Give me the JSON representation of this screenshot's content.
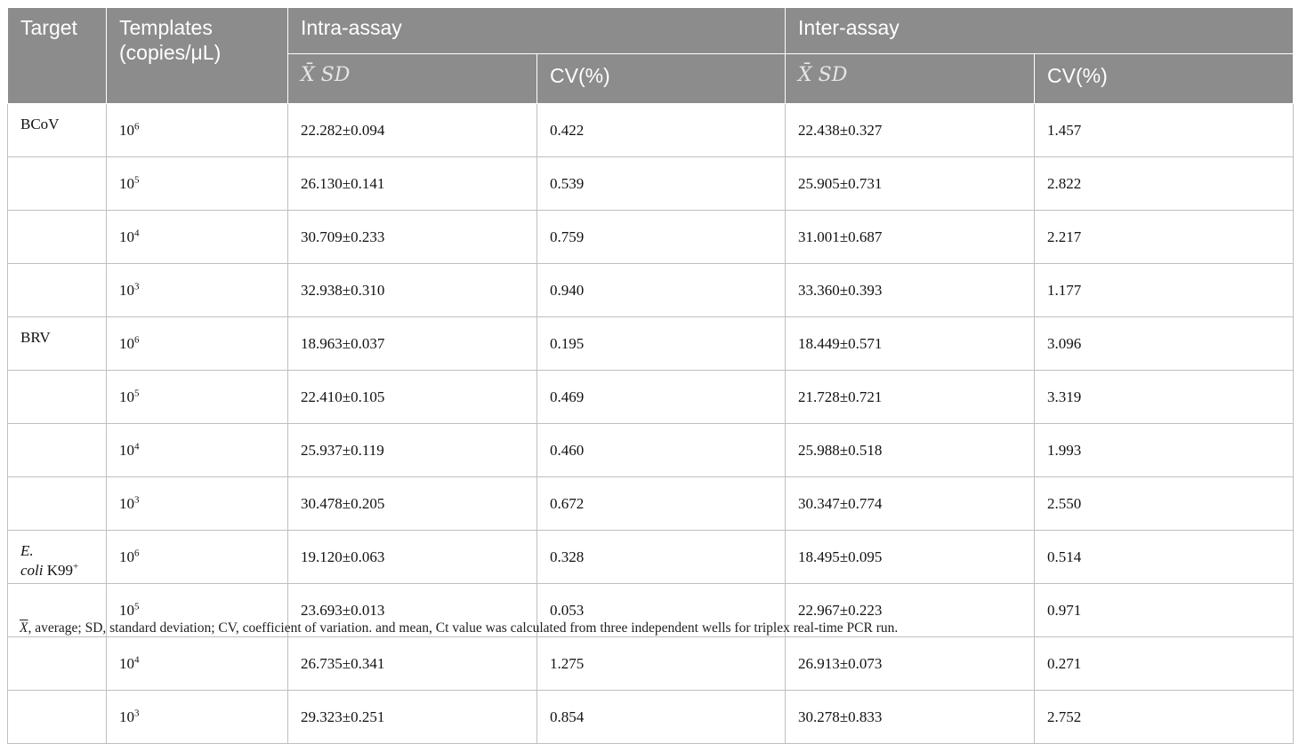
{
  "header": {
    "target": "Target",
    "templates": "Templates (copies/μL)",
    "intra": "Intra-assay",
    "inter": "Inter-assay",
    "mean_sd": "X̄ SD",
    "cv": "CV(%)"
  },
  "rows": [
    {
      "target": "BCoV",
      "base": "10",
      "exp": "6",
      "intra_msd": "22.282±0.094",
      "intra_cv": "0.422",
      "inter_msd": "22.438±0.327",
      "inter_cv": "1.457"
    },
    {
      "target": "",
      "base": "10",
      "exp": "5",
      "intra_msd": "26.130±0.141",
      "intra_cv": "0.539",
      "inter_msd": "25.905±0.731",
      "inter_cv": "2.822"
    },
    {
      "target": "",
      "base": "10",
      "exp": "4",
      "intra_msd": "30.709±0.233",
      "intra_cv": "0.759",
      "inter_msd": "31.001±0.687",
      "inter_cv": "2.217"
    },
    {
      "target": "",
      "base": "10",
      "exp": "3",
      "intra_msd": "32.938±0.310",
      "intra_cv": "0.940",
      "inter_msd": "33.360±0.393",
      "inter_cv": "1.177"
    },
    {
      "target": "BRV",
      "base": "10",
      "exp": "6",
      "intra_msd": "18.963±0.037",
      "intra_cv": "0.195",
      "inter_msd": "18.449±0.571",
      "inter_cv": "3.096"
    },
    {
      "target": "",
      "base": "10",
      "exp": "5",
      "intra_msd": "22.410±0.105",
      "intra_cv": "0.469",
      "inter_msd": "21.728±0.721",
      "inter_cv": "3.319"
    },
    {
      "target": "",
      "base": "10",
      "exp": "4",
      "intra_msd": "25.937±0.119",
      "intra_cv": "0.460",
      "inter_msd": "25.988±0.518",
      "inter_cv": "1.993"
    },
    {
      "target": "",
      "base": "10",
      "exp": "3",
      "intra_msd": "30.478±0.205",
      "intra_cv": "0.672",
      "inter_msd": "30.347±0.774",
      "inter_cv": "2.550"
    },
    {
      "target": "E. coli K99+",
      "base": "10",
      "exp": "6",
      "intra_msd": "19.120±0.063",
      "intra_cv": "0.328",
      "inter_msd": "18.495±0.095",
      "inter_cv": "0.514"
    },
    {
      "target": "",
      "base": "10",
      "exp": "5",
      "intra_msd": "23.693±0.013",
      "intra_cv": "0.053",
      "inter_msd": "22.967±0.223",
      "inter_cv": "0.971"
    },
    {
      "target": "",
      "base": "10",
      "exp": "4",
      "intra_msd": "26.735±0.341",
      "intra_cv": "1.275",
      "inter_msd": "26.913±0.073",
      "inter_cv": "0.271"
    },
    {
      "target": "",
      "base": "10",
      "exp": "3",
      "intra_msd": "29.323±0.251",
      "intra_cv": "0.854",
      "inter_msd": "30.278±0.833",
      "inter_cv": "2.752"
    }
  ],
  "ecoli": {
    "genus": "E.",
    "species": "coli",
    "strain": "K99",
    "sup": "+"
  },
  "footnote": {
    "symbol": "X",
    "text": ", average; SD, standard deviation; CV, coefficient of variation. and mean, Ct value was calculated from three independent wells for triplex real-time PCR run."
  }
}
